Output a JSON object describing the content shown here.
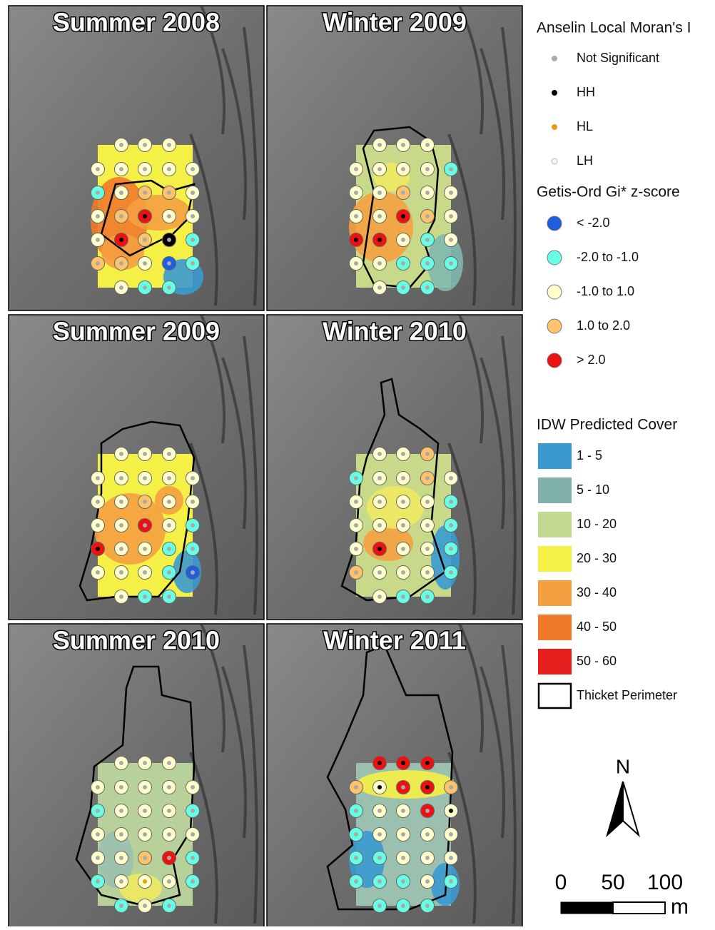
{
  "panels": [
    {
      "title": "Summer 2008"
    },
    {
      "title": "Winter 2009"
    },
    {
      "title": "Summer 2009"
    },
    {
      "title": "Winter 2010"
    },
    {
      "title": "Summer 2010"
    },
    {
      "title": "Winter 2011"
    }
  ],
  "legend": {
    "moran_title": "Anselin Local Moran's I",
    "moran_items": [
      "Not Significant",
      "HH",
      "HL",
      "LH"
    ],
    "gi_title": "Getis-Ord Gi* z-score",
    "gi_items": [
      "< -2.0",
      "-2.0 to -1.0",
      "-1.0 to 1.0",
      "1.0 to 2.0",
      "> 2.0"
    ],
    "idw_title": "IDW Predicted Cover",
    "idw_items": [
      "1 - 5",
      "5 - 10",
      "10 - 20",
      "20 - 30",
      "30 - 40",
      "40 - 50",
      "50 - 60"
    ],
    "perimeter": "Thicket Perimeter"
  },
  "north": "N",
  "scale": {
    "labels": [
      "0",
      "50",
      "100"
    ],
    "unit": "m"
  }
}
